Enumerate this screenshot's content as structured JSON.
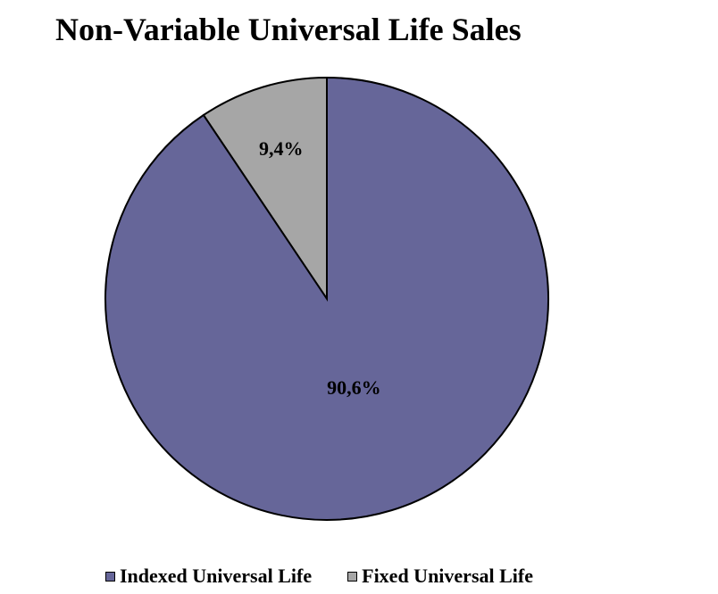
{
  "chart_data": {
    "type": "pie",
    "title": "Non-Variable Universal Life Sales",
    "slices": [
      {
        "label": "Fixed Universal Life",
        "value": 9.4,
        "display": "9,4%",
        "color": "#a6a6a6"
      },
      {
        "label": "Indexed Universal Life",
        "value": 90.6,
        "display": "90,6%",
        "color": "#666699"
      }
    ],
    "start": "12 o'clock, clockwise (Fixed Universal Life drawn counterclockwise from top)",
    "legend": {
      "position": "bottom",
      "order": [
        "Indexed Universal Life",
        "Fixed Universal Life"
      ]
    }
  }
}
